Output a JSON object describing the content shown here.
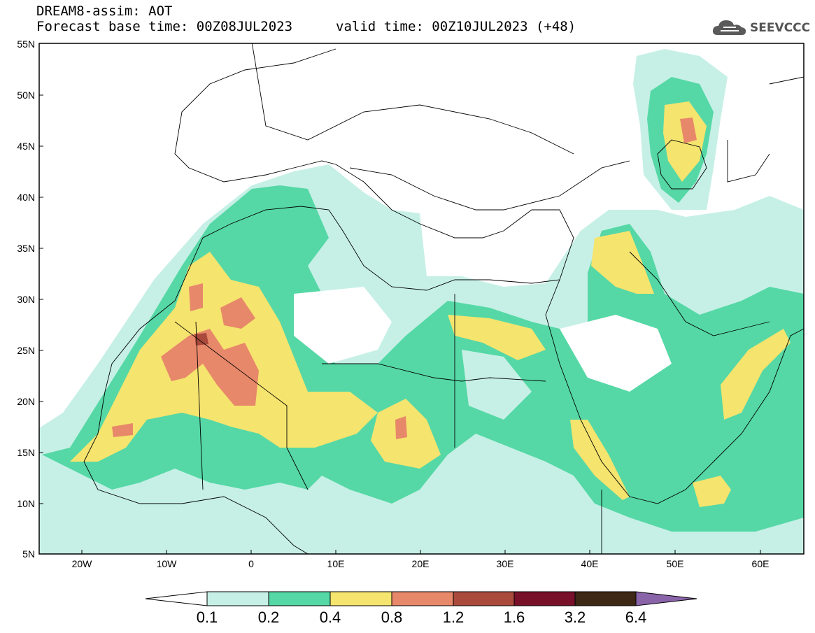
{
  "header": {
    "title": "DREAM8-assim: AOT",
    "base_time": "Forecast base time: 00Z08JUL2023",
    "valid_time": "valid time: 00Z10JUL2023 (+48)"
  },
  "logo": {
    "text": "SEEVCCC",
    "icon": "cloud-icon"
  },
  "axes": {
    "lat_labels": [
      "55N",
      "50N",
      "45N",
      "40N",
      "35N",
      "30N",
      "25N",
      "20N",
      "15N",
      "10N",
      "5N"
    ],
    "lon_labels": [
      "20W",
      "10W",
      "0",
      "10E",
      "20E",
      "30E",
      "40E",
      "50E",
      "60E"
    ]
  },
  "colorbar": {
    "labels": [
      "0.1",
      "0.2",
      "0.4",
      "0.8",
      "1.2",
      "1.6",
      "3.2",
      "6.4"
    ],
    "colors": [
      "#ffffff",
      "#c6f0e6",
      "#55d8a6",
      "#f5e46e",
      "#e8886a",
      "#a94a3c",
      "#78102a",
      "#3c2814",
      "#8a64a8"
    ]
  }
}
